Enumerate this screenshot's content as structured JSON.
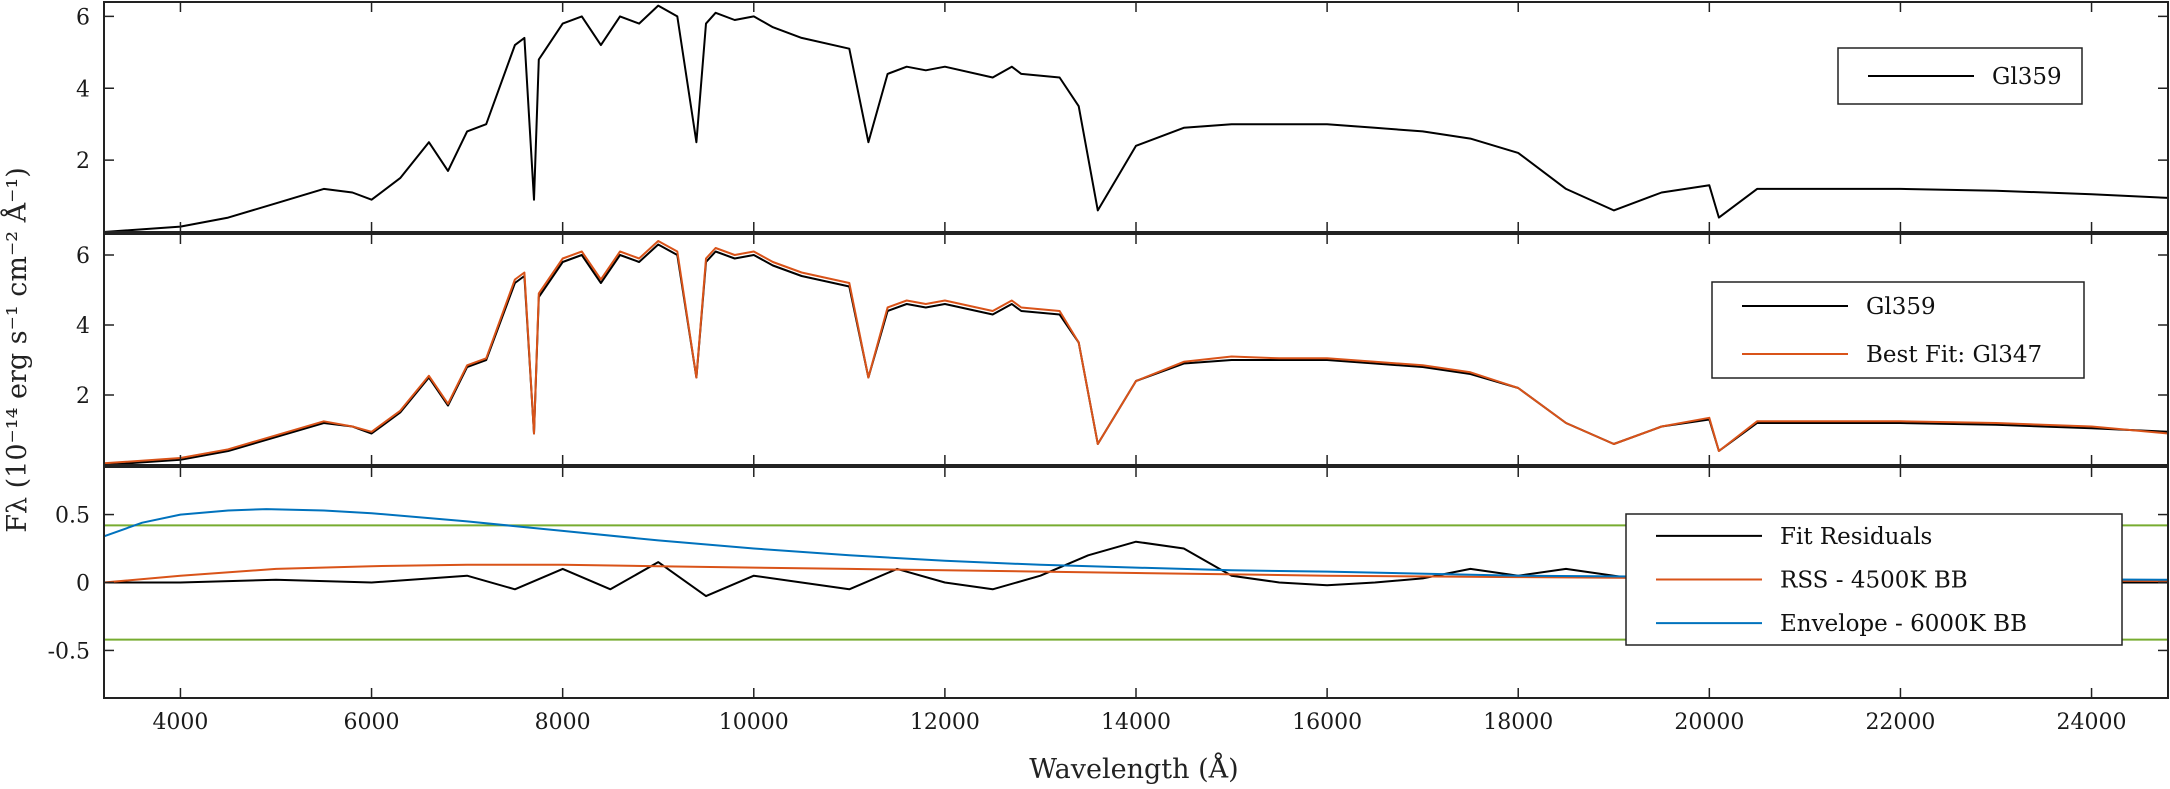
{
  "chart_data": {
    "type": "line",
    "xlabel": "Wavelength (Å)",
    "ylabel": "Fλ (10⁻¹⁴ erg s⁻¹ cm⁻² Å⁻¹)",
    "xlim": [
      3200,
      24800
    ],
    "x_ticks": [
      4000,
      6000,
      8000,
      10000,
      12000,
      14000,
      16000,
      18000,
      20000,
      22000,
      24000
    ],
    "grid": false,
    "colors": {
      "black": "#000000",
      "orange": "#d95319",
      "gray": "#8c8c8c",
      "blue": "#0072bd",
      "green": "#77ac30"
    },
    "panels": [
      {
        "ylim": [
          0,
          6.4
        ],
        "y_ticks": [
          2,
          4,
          6
        ],
        "legend_position": "top-right",
        "series": [
          {
            "name": "Gl359",
            "color": "#000000",
            "x": [
              3200,
              4000,
              4500,
              5000,
              5500,
              5800,
              6000,
              6300,
              6600,
              6800,
              7000,
              7200,
              7500,
              7600,
              7700,
              7750,
              7800,
              8000,
              8200,
              8400,
              8600,
              8800,
              9000,
              9200,
              9400,
              9500,
              9600,
              9800,
              10000,
              10200,
              10500,
              11000,
              11200,
              11400,
              11600,
              11800,
              12000,
              12500,
              12700,
              12800,
              13200,
              13400,
              13600,
              13800,
              14000,
              14500,
              15000,
              15500,
              16000,
              16500,
              17000,
              17500,
              18000,
              18500,
              19000,
              19500,
              20000,
              20100,
              20500,
              21000,
              22000,
              23000,
              24000,
              24800
            ],
            "y": [
              0.0,
              0.15,
              0.4,
              0.8,
              1.2,
              1.1,
              0.9,
              1.5,
              2.5,
              1.7,
              2.8,
              3.0,
              5.2,
              5.4,
              0.9,
              4.8,
              5.0,
              5.8,
              6.0,
              5.2,
              6.0,
              5.8,
              6.3,
              6.0,
              2.5,
              5.8,
              6.1,
              5.9,
              6.0,
              5.7,
              5.4,
              5.1,
              2.5,
              4.4,
              4.6,
              4.5,
              4.6,
              4.3,
              4.6,
              4.4,
              4.3,
              3.5,
              0.6,
              1.5,
              2.4,
              2.9,
              3.0,
              3.0,
              3.0,
              2.9,
              2.8,
              2.6,
              2.2,
              1.2,
              0.6,
              1.1,
              1.3,
              0.4,
              1.2,
              1.2,
              1.2,
              1.15,
              1.05,
              0.95
            ]
          }
        ]
      },
      {
        "ylim": [
          0,
          6.6
        ],
        "y_ticks": [
          2,
          4,
          6
        ],
        "legend_position": "top-right",
        "series": [
          {
            "name": "Gl359",
            "color": "#000000",
            "x": [
              3200,
              4000,
              4500,
              5000,
              5500,
              5800,
              6000,
              6300,
              6600,
              6800,
              7000,
              7200,
              7500,
              7600,
              7700,
              7750,
              7800,
              8000,
              8200,
              8400,
              8600,
              8800,
              9000,
              9200,
              9400,
              9500,
              9600,
              9800,
              10000,
              10200,
              10500,
              11000,
              11200,
              11400,
              11600,
              11800,
              12000,
              12500,
              12700,
              12800,
              13200,
              13400,
              13600,
              13800,
              14000,
              14500,
              15000,
              15500,
              16000,
              16500,
              17000,
              17500,
              18000,
              18500,
              19000,
              19500,
              20000,
              20100,
              20500,
              21000,
              22000,
              23000,
              24000,
              24800
            ],
            "y": [
              0.0,
              0.15,
              0.4,
              0.8,
              1.2,
              1.1,
              0.9,
              1.5,
              2.5,
              1.7,
              2.8,
              3.0,
              5.2,
              5.4,
              0.9,
              4.8,
              5.0,
              5.8,
              6.0,
              5.2,
              6.0,
              5.8,
              6.3,
              6.0,
              2.5,
              5.8,
              6.1,
              5.9,
              6.0,
              5.7,
              5.4,
              5.1,
              2.5,
              4.4,
              4.6,
              4.5,
              4.6,
              4.3,
              4.6,
              4.4,
              4.3,
              3.5,
              0.6,
              1.5,
              2.4,
              2.9,
              3.0,
              3.0,
              3.0,
              2.9,
              2.8,
              2.6,
              2.2,
              1.2,
              0.6,
              1.1,
              1.3,
              0.4,
              1.2,
              1.2,
              1.2,
              1.15,
              1.05,
              0.95
            ]
          },
          {
            "name": "Best Fit: Gl347",
            "color": "#d95319",
            "x": [
              3200,
              4000,
              4500,
              5000,
              5500,
              5800,
              6000,
              6300,
              6600,
              6800,
              7000,
              7200,
              7500,
              7600,
              7700,
              7750,
              7800,
              8000,
              8200,
              8400,
              8600,
              8800,
              9000,
              9200,
              9400,
              9500,
              9600,
              9800,
              10000,
              10200,
              10500,
              11000,
              11200,
              11400,
              11600,
              11800,
              12000,
              12500,
              12700,
              12800,
              13200,
              13400,
              13600,
              13800,
              14000,
              14500,
              15000,
              15500,
              16000,
              16500,
              17000,
              17500,
              18000,
              18500,
              19000,
              19500,
              20000,
              20100,
              20500,
              21000,
              22000,
              23000,
              24000,
              24800
            ],
            "y": [
              0.05,
              0.2,
              0.45,
              0.85,
              1.25,
              1.1,
              0.95,
              1.55,
              2.55,
              1.75,
              2.85,
              3.05,
              5.3,
              5.5,
              0.9,
              4.9,
              5.1,
              5.9,
              6.1,
              5.3,
              6.1,
              5.9,
              6.4,
              6.1,
              2.5,
              5.9,
              6.2,
              6.0,
              6.1,
              5.8,
              5.5,
              5.2,
              2.5,
              4.5,
              4.7,
              4.6,
              4.7,
              4.4,
              4.7,
              4.5,
              4.4,
              3.5,
              0.6,
              1.5,
              2.4,
              2.95,
              3.1,
              3.05,
              3.05,
              2.95,
              2.85,
              2.65,
              2.2,
              1.2,
              0.6,
              1.1,
              1.35,
              0.4,
              1.25,
              1.25,
              1.25,
              1.2,
              1.1,
              0.9
            ]
          }
        ]
      },
      {
        "ylim": [
          -0.85,
          0.85
        ],
        "y_ticks": [
          -0.5,
          0,
          0.5
        ],
        "reference_lines": [
          0.42,
          -0.42
        ],
        "legend_position": "right",
        "series": [
          {
            "name": "Fit Residuals",
            "color": "#000000",
            "x": [
              3200,
              4000,
              5000,
              6000,
              7000,
              7500,
              8000,
              8500,
              9000,
              9500,
              10000,
              10500,
              11000,
              11500,
              12000,
              12500,
              13000,
              13500,
              14000,
              14500,
              15000,
              15500,
              16000,
              16500,
              17000,
              17500,
              18000,
              18500,
              19000,
              19500,
              20000,
              21000,
              22000,
              23000,
              24000,
              24800
            ],
            "y": [
              0.0,
              0.0,
              0.02,
              0.0,
              0.05,
              -0.05,
              0.1,
              -0.05,
              0.15,
              -0.1,
              0.05,
              0.0,
              -0.05,
              0.1,
              0.0,
              -0.05,
              0.05,
              0.2,
              0.3,
              0.25,
              0.05,
              0.0,
              -0.02,
              0.0,
              0.03,
              0.1,
              0.05,
              0.1,
              0.05,
              0.0,
              0.02,
              0.0,
              0.0,
              0.0,
              0.0,
              0.0
            ]
          },
          {
            "name": "RSS - 4500K BB",
            "color": "#d95319",
            "x": [
              3200,
              4000,
              5000,
              6000,
              7000,
              8000,
              9000,
              10000,
              11000,
              12000,
              13000,
              14000,
              16000,
              18000,
              20000,
              22000,
              24800
            ],
            "y": [
              0.0,
              0.05,
              0.1,
              0.12,
              0.13,
              0.13,
              0.12,
              0.11,
              0.1,
              0.09,
              0.08,
              0.07,
              0.05,
              0.04,
              0.03,
              0.02,
              0.01
            ]
          },
          {
            "name": "Envelope - 6000K BB",
            "color": "#0072bd",
            "x": [
              3200,
              3600,
              4000,
              4500,
              4900,
              5500,
              6000,
              7000,
              8000,
              9000,
              10000,
              11000,
              12000,
              13000,
              14000,
              15000,
              16000,
              18000,
              20000,
              22000,
              24800
            ],
            "y": [
              0.34,
              0.44,
              0.5,
              0.53,
              0.54,
              0.53,
              0.51,
              0.45,
              0.38,
              0.31,
              0.25,
              0.2,
              0.16,
              0.13,
              0.11,
              0.09,
              0.08,
              0.05,
              0.04,
              0.03,
              0.02
            ]
          }
        ]
      }
    ]
  }
}
